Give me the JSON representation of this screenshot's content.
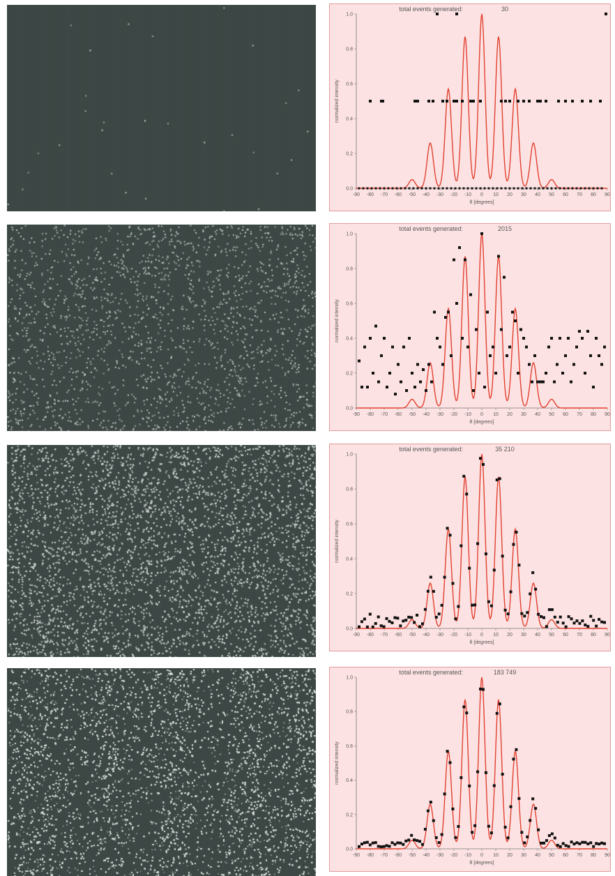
{
  "colors": {
    "screen_background": "#3b4643",
    "screen_dots": "#d7ddd9",
    "plot_background": "#fde2e3",
    "plot_border": "#e39a9b",
    "curve": "#e0412f",
    "points": "#111111"
  },
  "chart_data": [
    {
      "type": "scatter",
      "title": "total events generated:",
      "total_events": "30",
      "xlabel": "θ [degrees]",
      "ylabel": "normalized intensity",
      "xlim": [
        -90,
        90
      ],
      "ylim": [
        0,
        1.0
      ],
      "xticks": [
        "-90",
        "-80",
        "-70",
        "-60",
        "-50",
        "-40",
        "-30",
        "-20",
        "-10",
        "0",
        "10",
        "20",
        "30",
        "40",
        "50",
        "60",
        "70",
        "80",
        "90"
      ],
      "yticks": [
        "0.0",
        "0.2",
        "0.4",
        "0.6",
        "0.8",
        "1.0"
      ],
      "grid": false,
      "series": [
        {
          "kind": "theory-curve",
          "peaks_x": [
            -50,
            -37,
            -24,
            -12,
            0,
            12,
            24,
            37,
            50
          ],
          "peaks_y": [
            0.05,
            0.26,
            0.57,
            0.87,
            1.0,
            0.87,
            0.57,
            0.26,
            0.05
          ]
        },
        {
          "kind": "detected-points",
          "x": [
            -80,
            -72,
            -71,
            -48,
            -46,
            -38,
            -35,
            -28,
            -25,
            -20,
            -18,
            -14,
            -8,
            -6,
            -1,
            14,
            17,
            20,
            26,
            30,
            34,
            40,
            42,
            46,
            55,
            60,
            65,
            72,
            78,
            85,
            -32,
            -18,
            89
          ],
          "y": [
            0.5,
            0.5,
            0.5,
            0.5,
            0.5,
            0.5,
            0.5,
            0.5,
            0.5,
            0.5,
            0.5,
            0.5,
            0.5,
            0.5,
            0.5,
            0.5,
            0.5,
            0.5,
            0.5,
            0.5,
            0.5,
            0.5,
            0.5,
            0.5,
            0.5,
            0.5,
            0.5,
            0.5,
            0.5,
            0.5,
            1.0,
            1.0,
            1.0
          ]
        }
      ]
    },
    {
      "type": "scatter",
      "title": "total events generated:",
      "total_events": "2015",
      "xlabel": "θ [degrees]",
      "ylabel": "normalized intensity",
      "xlim": [
        -90,
        90
      ],
      "ylim": [
        0,
        1.0
      ],
      "xticks": [
        "-90",
        "-80",
        "-70",
        "-60",
        "-50",
        "-40",
        "-30",
        "-20",
        "-10",
        "0",
        "10",
        "20",
        "30",
        "40",
        "50",
        "60",
        "70",
        "80",
        "90"
      ],
      "yticks": [
        "0.0",
        "0.2",
        "0.4",
        "0.6",
        "0.8",
        "1.0"
      ],
      "grid": false,
      "series": [
        {
          "kind": "theory-curve",
          "peaks_x": [
            -50,
            -37,
            -24,
            -12,
            0,
            12,
            24,
            37,
            50
          ],
          "peaks_y": [
            0.05,
            0.26,
            0.57,
            0.87,
            1.0,
            0.87,
            0.57,
            0.26,
            0.05
          ]
        },
        {
          "kind": "detected-points",
          "x": [
            -88,
            -86,
            -84,
            -82,
            -80,
            -78,
            -76,
            -74,
            -72,
            -70,
            -68,
            -66,
            -64,
            -62,
            -60,
            -58,
            -56,
            -54,
            -52,
            -50,
            -48,
            -46,
            -44,
            -42,
            -40,
            -38,
            -36,
            -34,
            -32,
            -30,
            -28,
            -26,
            -24,
            -22,
            -20,
            -18,
            -16,
            -14,
            -12,
            -10,
            -8,
            -6,
            -4,
            -2,
            0,
            2,
            4,
            6,
            8,
            10,
            12,
            14,
            16,
            18,
            20,
            22,
            24,
            26,
            28,
            30,
            32,
            34,
            36,
            38,
            40,
            42,
            44,
            46,
            48,
            50,
            52,
            54,
            56,
            58,
            60,
            62,
            64,
            66,
            68,
            70,
            72,
            74,
            76,
            78,
            80,
            82,
            84,
            86,
            88
          ],
          "y": [
            0.27,
            0.12,
            0.35,
            0.12,
            0.4,
            0.2,
            0.47,
            0.15,
            0.3,
            0.4,
            0.12,
            0.2,
            0.35,
            0.08,
            0.25,
            0.15,
            0.35,
            0.1,
            0.4,
            0.2,
            0.12,
            0.25,
            0.15,
            0.22,
            0.1,
            0.25,
            0.15,
            0.55,
            0.4,
            0.35,
            0.25,
            0.52,
            0.55,
            0.3,
            0.85,
            0.6,
            0.92,
            0.4,
            0.85,
            0.35,
            0.65,
            0.1,
            0.45,
            0.2,
            1.0,
            0.12,
            0.55,
            0.3,
            0.35,
            0.2,
            0.87,
            0.45,
            0.75,
            0.3,
            0.35,
            0.55,
            0.5,
            0.2,
            0.45,
            0.4,
            0.35,
            0.25,
            0.15,
            0.3,
            0.15,
            0.15,
            0.15,
            0.2,
            0.35,
            0.4,
            0.15,
            0.25,
            0.4,
            0.2,
            0.3,
            0.4,
            0.15,
            0.25,
            0.35,
            0.44,
            0.4,
            0.2,
            0.44,
            0.3,
            0.12,
            0.4,
            0.3,
            0.25,
            0.35
          ]
        }
      ]
    },
    {
      "type": "scatter",
      "title": "total events generated:",
      "total_events": "35 210",
      "xlabel": "θ [degrees]",
      "ylabel": "normalized intensity",
      "xlim": [
        -90,
        90
      ],
      "ylim": [
        0,
        1.0
      ],
      "xticks": [
        "-90",
        "-80",
        "-70",
        "-60",
        "-50",
        "-40",
        "-30",
        "-20",
        "-10",
        "0",
        "10",
        "20",
        "30",
        "40",
        "50",
        "60",
        "70",
        "80",
        "90"
      ],
      "yticks": [
        "0.0",
        "0.2",
        "0.4",
        "0.6",
        "0.8",
        "1.0"
      ],
      "grid": false,
      "series": [
        {
          "kind": "theory-curve",
          "peaks_x": [
            -50,
            -37,
            -24,
            -12,
            0,
            12,
            24,
            37,
            50
          ],
          "peaks_y": [
            0.05,
            0.26,
            0.57,
            0.87,
            1.0,
            0.87,
            0.57,
            0.26,
            0.05
          ]
        },
        {
          "kind": "detected-points",
          "pattern": "theory-with-noise",
          "count": 90,
          "noise": 0.045
        }
      ]
    },
    {
      "type": "scatter",
      "title": "total events generated:",
      "total_events": "183 749",
      "xlabel": "θ [degrees]",
      "ylabel": "normalized intensity",
      "xlim": [
        -90,
        90
      ],
      "ylim": [
        0,
        1.0
      ],
      "xticks": [
        "-90",
        "-80",
        "-70",
        "-60",
        "-50",
        "-40",
        "-30",
        "-20",
        "-10",
        "0",
        "10",
        "20",
        "30",
        "40",
        "50",
        "60",
        "70",
        "80",
        "90"
      ],
      "yticks": [
        "0.0",
        "0.2",
        "0.4",
        "0.6",
        "0.8",
        "1.0"
      ],
      "grid": false,
      "series": [
        {
          "kind": "theory-curve",
          "peaks_x": [
            -50,
            -37,
            -24,
            -12,
            0,
            12,
            24,
            37,
            50
          ],
          "peaks_y": [
            0.05,
            0.26,
            0.57,
            0.87,
            1.0,
            0.87,
            0.57,
            0.26,
            0.05
          ]
        },
        {
          "kind": "detected-points",
          "pattern": "theory-with-noise",
          "count": 90,
          "noise": 0.015
        }
      ]
    }
  ],
  "screens": [
    {
      "dots": 30,
      "fringe_contrast": 0.0
    },
    {
      "dots": 2015,
      "fringe_contrast": 0.0
    },
    {
      "dots": 35210,
      "fringe_contrast": 0.15
    },
    {
      "dots": 183749,
      "fringe_contrast": 0.6
    }
  ]
}
